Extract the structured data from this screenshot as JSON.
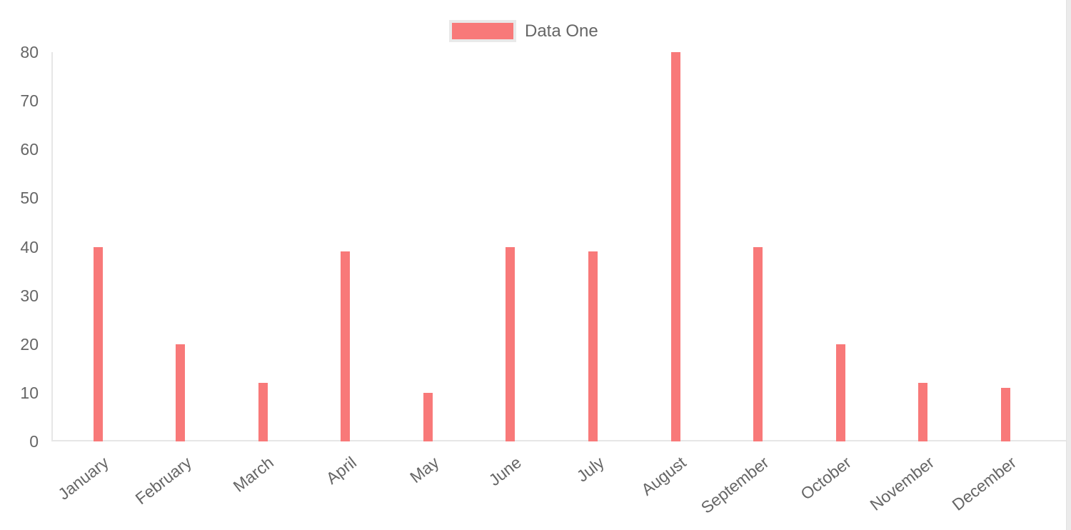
{
  "legend": {
    "label": "Data One",
    "box_color": "#f87979",
    "box_border_color": "#e9e9e9",
    "text_color": "#666666",
    "position": "top"
  },
  "chart_data": {
    "type": "bar",
    "title": "",
    "xlabel": "",
    "ylabel": "",
    "categories": [
      "January",
      "February",
      "March",
      "April",
      "May",
      "June",
      "July",
      "August",
      "September",
      "October",
      "November",
      "December"
    ],
    "series": [
      {
        "name": "Data One",
        "values": [
          40,
          20,
          12,
          39,
          10,
          40,
          39,
          80,
          40,
          20,
          12,
          11
        ],
        "color": "#f87979"
      }
    ],
    "ylim": [
      0,
      80
    ],
    "y_ticks": [
      0,
      10,
      20,
      30,
      40,
      50,
      60,
      70,
      80
    ],
    "grid": false,
    "legend_position": "top",
    "x_label_rotation_deg": -38,
    "axis_line_color": "#e6e6e6",
    "tick_label_color": "#666666",
    "background_color": "#ffffff"
  }
}
